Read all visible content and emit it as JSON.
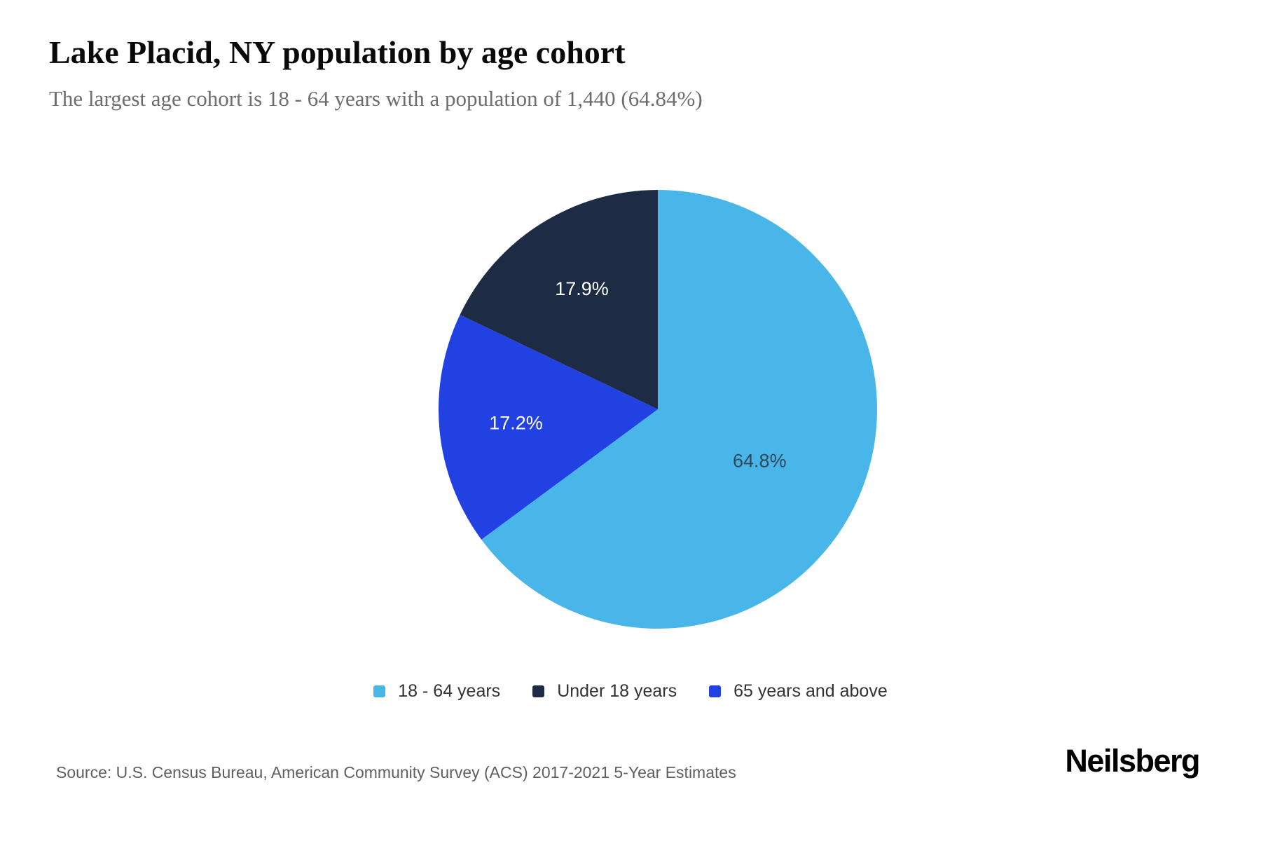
{
  "page": {
    "title": "Lake Placid, NY population by age cohort",
    "subtitle": "The largest age cohort is 18 - 64 years with a population of 1,440 (64.84%)",
    "source": "Source: U.S. Census Bureau, American Community Survey (ACS) 2017-2021 5-Year Estimates",
    "brand": "Neilsberg"
  },
  "chart_data": {
    "type": "pie",
    "title": "Lake Placid, NY population by age cohort",
    "start_angle": "top",
    "direction": "clockwise",
    "slices": [
      {
        "name": "18 - 64 years",
        "percent": 64.84,
        "label": "64.8%",
        "color": "#49b6e9",
        "label_color": "#33475b"
      },
      {
        "name": "65 years and above",
        "percent": 17.2,
        "label": "17.2%",
        "color": "#2241e3",
        "label_color": "#ffffff"
      },
      {
        "name": "Under 18 years",
        "percent": 17.9,
        "label": "17.9%",
        "color": "#1d2c44",
        "label_color": "#ffffff"
      }
    ],
    "legend_order": [
      0,
      2,
      1
    ],
    "legend_position": "bottom"
  }
}
